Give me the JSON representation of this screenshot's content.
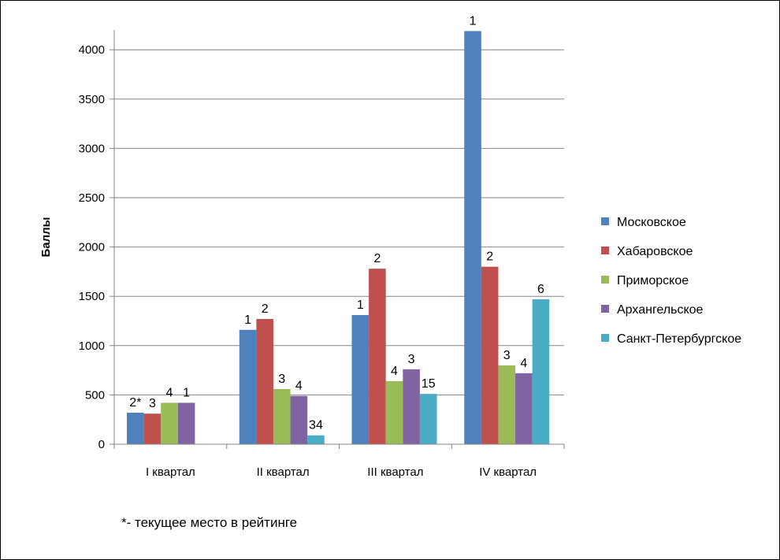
{
  "chart_data": {
    "type": "bar",
    "title": "",
    "xlabel": "",
    "ylabel": "Баллы",
    "ylim": [
      0,
      4200
    ],
    "yticks": [
      0,
      500,
      1000,
      1500,
      2000,
      2500,
      3000,
      3500,
      4000
    ],
    "grid": "horizontal",
    "legend_position": "right",
    "categories": [
      "I квартал",
      "II квартал",
      "III квартал",
      "IV квартал"
    ],
    "series": [
      {
        "name": "Московское",
        "color": "#4F81BD",
        "values": [
          320,
          1160,
          1310,
          4190
        ],
        "labels": [
          "2*",
          "1",
          "1",
          "1"
        ]
      },
      {
        "name": "Хабаровское",
        "color": "#C0504D",
        "values": [
          310,
          1270,
          1780,
          1800
        ],
        "labels": [
          "3",
          "2",
          "2",
          "2"
        ]
      },
      {
        "name": "Приморское",
        "color": "#9BBB59",
        "values": [
          420,
          560,
          640,
          800
        ],
        "labels": [
          "4",
          "3",
          "4",
          "3"
        ]
      },
      {
        "name": "Архангельское",
        "color": "#8064A2",
        "values": [
          420,
          490,
          760,
          720
        ],
        "labels": [
          "1",
          "4",
          "3",
          "4"
        ]
      },
      {
        "name": "Санкт-Петербургское",
        "color": "#4BACC6",
        "values": [
          null,
          90,
          510,
          1470
        ],
        "labels": [
          "",
          "34",
          "15",
          "6"
        ]
      }
    ]
  },
  "footnote": "*- текущее место в рейтинге"
}
